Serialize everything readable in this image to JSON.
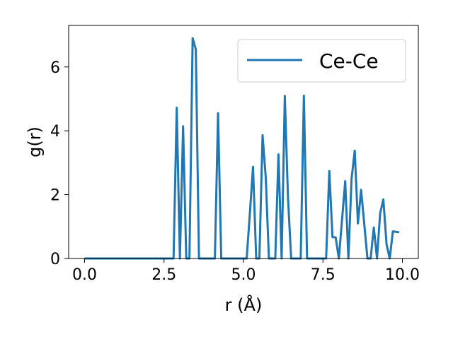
{
  "chart_data": {
    "type": "line",
    "xlabel": "r (Å)",
    "ylabel": "g(r)",
    "xlim": [
      -0.5,
      10.5
    ],
    "ylim": [
      0,
      7.3
    ],
    "xticks": [
      0.0,
      2.5,
      5.0,
      7.5,
      10.0
    ],
    "xtick_labels": [
      "0.0",
      "2.5",
      "5.0",
      "7.5",
      "10.0"
    ],
    "yticks": [
      0,
      2,
      4,
      6
    ],
    "ytick_labels": [
      "0",
      "2",
      "4",
      "6"
    ],
    "grid": false,
    "legend": "top-right",
    "series": [
      {
        "name": "Ce-Ce",
        "color": "#1f77b4",
        "x": [
          0.0,
          2.8,
          2.9,
          3.0,
          3.1,
          3.2,
          3.3,
          3.4,
          3.5,
          3.6,
          4.1,
          4.2,
          4.3,
          5.1,
          5.2,
          5.3,
          5.4,
          5.5,
          5.6,
          5.7,
          5.8,
          6.0,
          6.1,
          6.2,
          6.3,
          6.4,
          6.5,
          6.8,
          6.9,
          7.0,
          7.6,
          7.7,
          7.8,
          7.9,
          8.0,
          8.2,
          8.3,
          8.4,
          8.5,
          8.6,
          8.7,
          8.9,
          9.0,
          9.1,
          9.2,
          9.3,
          9.4,
          9.5,
          9.6,
          9.7,
          9.9
        ],
        "y": [
          0.0,
          0.0,
          4.72,
          0.0,
          4.14,
          0.0,
          0.0,
          6.9,
          6.55,
          0.0,
          0.0,
          4.55,
          0.0,
          0.0,
          1.4,
          2.87,
          0.0,
          0.0,
          3.86,
          2.55,
          0.0,
          0.0,
          3.26,
          0.0,
          5.09,
          1.9,
          0.0,
          0.0,
          5.1,
          0.0,
          0.0,
          2.74,
          0.67,
          0.66,
          0.0,
          2.42,
          0.0,
          2.5,
          3.38,
          1.1,
          2.15,
          0.0,
          0.0,
          0.97,
          0.0,
          1.42,
          1.85,
          0.45,
          0.0,
          0.85,
          0.82
        ]
      }
    ]
  }
}
